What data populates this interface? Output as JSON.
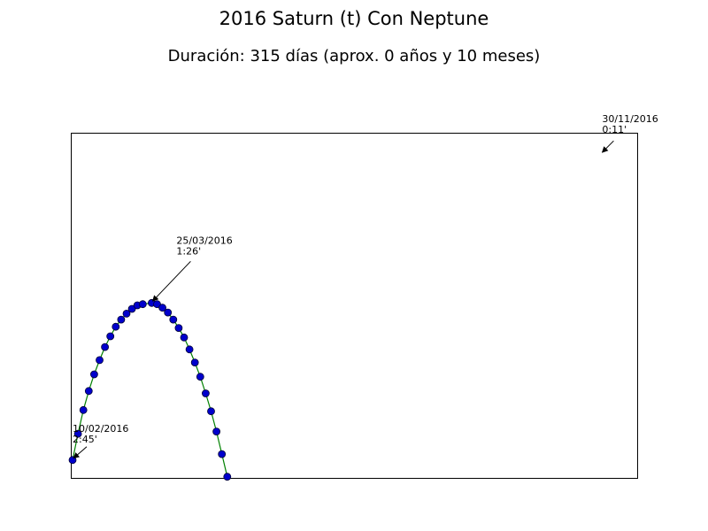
{
  "chart_data": {
    "type": "line",
    "title": "2016 Saturn (t) Con Neptune",
    "subtitle": "Duración: 315 días (aprox. 0 años y 10 meses)",
    "xlabel": "",
    "ylabel": "",
    "axes_ticks_visible": false,
    "grid": false,
    "line_color": "#008000",
    "marker_color": "#0000cc",
    "marker_edge_color": "#000033",
    "xlim": [
      "2016-02-09",
      "2016-12-20"
    ],
    "ylim": [
      0,
      2.9
    ],
    "series": [
      {
        "points": [
          {
            "x": "2016-02-10",
            "y": 2.75
          },
          {
            "x": "2016-02-13",
            "y": 2.53
          },
          {
            "x": "2016-02-16",
            "y": 2.33
          },
          {
            "x": "2016-02-19",
            "y": 2.17
          },
          {
            "x": "2016-02-22",
            "y": 2.03
          },
          {
            "x": "2016-02-25",
            "y": 1.91
          },
          {
            "x": "2016-02-28",
            "y": 1.8
          },
          {
            "x": "2016-03-02",
            "y": 1.71
          },
          {
            "x": "2016-03-05",
            "y": 1.63
          },
          {
            "x": "2016-03-08",
            "y": 1.57
          },
          {
            "x": "2016-03-11",
            "y": 1.52
          },
          {
            "x": "2016-03-14",
            "y": 1.48
          },
          {
            "x": "2016-03-17",
            "y": 1.45
          },
          {
            "x": "2016-03-20",
            "y": 1.44
          },
          {
            "x": "2016-03-25",
            "y": 1.43
          },
          {
            "x": "2016-03-28",
            "y": 1.44
          },
          {
            "x": "2016-03-31",
            "y": 1.47
          },
          {
            "x": "2016-04-03",
            "y": 1.51
          },
          {
            "x": "2016-04-06",
            "y": 1.57
          },
          {
            "x": "2016-04-09",
            "y": 1.64
          },
          {
            "x": "2016-04-12",
            "y": 1.72
          },
          {
            "x": "2016-04-15",
            "y": 1.82
          },
          {
            "x": "2016-04-18",
            "y": 1.93
          },
          {
            "x": "2016-04-21",
            "y": 2.05
          },
          {
            "x": "2016-04-24",
            "y": 2.19
          },
          {
            "x": "2016-04-27",
            "y": 2.34
          },
          {
            "x": "2016-04-30",
            "y": 2.51
          },
          {
            "x": "2016-05-03",
            "y": 2.7
          },
          {
            "x": "2016-05-06",
            "y": 2.89
          }
        ]
      }
    ],
    "annotations": [
      {
        "date": "10/02/2016",
        "value": "2:45'",
        "x": "2016-02-10",
        "y": 2.75
      },
      {
        "date": "25/03/2016",
        "value": "1:26'",
        "x": "2016-03-25",
        "y": 1.43
      },
      {
        "date": "30/11/2016",
        "value": "0:11'",
        "x": "2016-11-30",
        "y": 0.18
      }
    ]
  }
}
